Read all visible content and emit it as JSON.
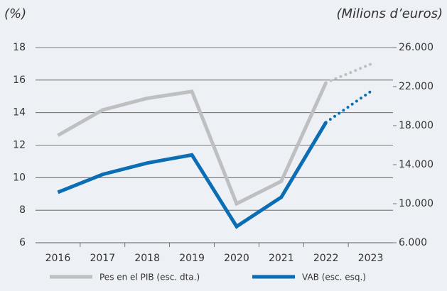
{
  "chart_data": {
    "type": "line",
    "ylabel": "(%)",
    "y2label": "(Milions d’euros)",
    "categories": [
      "2016",
      "2017",
      "2018",
      "2019",
      "2020",
      "2021",
      "2022",
      "2023"
    ],
    "series": [
      {
        "name": "Pes en el PIB (esc. dta.)",
        "color": "#bdbfc1",
        "axis": "y2",
        "dotted_from": "2022",
        "values": [
          17000,
          19600,
          20800,
          21500,
          10000,
          12300,
          22400,
          24300
        ]
      },
      {
        "name": "VAB (esc. esq.)",
        "color": "#0b6db3",
        "dotted_from": "2022",
        "values": [
          9.1,
          10.2,
          10.9,
          11.4,
          7.0,
          8.8,
          13.4,
          15.3
        ]
      }
    ],
    "ylim": [
      6,
      18
    ],
    "yticks": [
      6,
      8,
      10,
      12,
      14,
      16,
      18
    ],
    "y2lim": [
      6000,
      26000
    ],
    "y2ticks": [
      {
        "value": 6000,
        "label": "6.000"
      },
      {
        "value": 10000,
        "label": "10.000"
      },
      {
        "value": 14000,
        "label": "14.000"
      },
      {
        "value": 18000,
        "label": "18.000"
      },
      {
        "value": 22000,
        "label": "22.000"
      },
      {
        "value": 26000,
        "label": "26.000"
      }
    ],
    "grid": true,
    "legend": "bottom"
  }
}
